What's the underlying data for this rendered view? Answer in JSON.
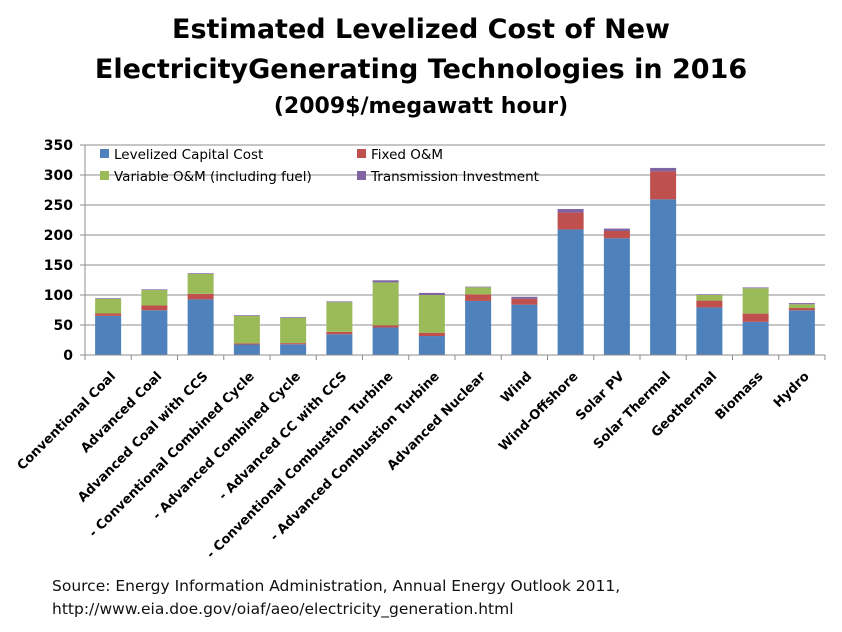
{
  "title": {
    "line1": "Estimated Levelized Cost of New",
    "line2": "ElectricityGenerating Technologies in 2016",
    "line3": "(2009$/megawatt hour)"
  },
  "source": {
    "line1": "Source: Energy Information Administration, Annual Energy Outlook 2011,",
    "line2": "http://www.eia.doe.gov/oiaf/aeo/electricity_generation.html"
  },
  "chart_data": {
    "type": "bar",
    "stacked": true,
    "grid": true,
    "legend_position": "top-left",
    "ylim": [
      0,
      350
    ],
    "yticks": [
      0,
      50,
      100,
      150,
      200,
      250,
      300,
      350
    ],
    "categories": [
      "Conventional Coal",
      "Advanced Coal",
      "Advanced Coal with CCS",
      "- Conventional Combined Cycle",
      "- Advanced Combined Cycle",
      "- Advanced CC with CCS",
      "- Conventional Combustion Turbine",
      "- Advanced Combustion Turbine",
      "Advanced Nuclear",
      "Wind",
      "Wind-Offshore",
      "Solar PV",
      "Solar Thermal",
      "Geothermal",
      "Biomass",
      "Hydro"
    ],
    "series": [
      {
        "name": "Levelized Capital  Cost",
        "color": "#4f81bd",
        "values": [
          65.3,
          74.6,
          92.7,
          17.5,
          17.9,
          34.6,
          45.8,
          31.6,
          90.1,
          83.9,
          209.3,
          194.6,
          259.4,
          79.3,
          55.3,
          74.5
        ]
      },
      {
        "name": "Fixed O&M",
        "color": "#c0504d",
        "values": [
          3.9,
          7.9,
          9.2,
          1.9,
          1.9,
          3.9,
          3.7,
          5.5,
          11.1,
          9.6,
          28.1,
          12.1,
          46.6,
          11.4,
          13.7,
          3.8
        ]
      },
      {
        "name": "Variable O&M (including fuel)",
        "color": "#9bbb59",
        "values": [
          24.3,
          25.7,
          33.1,
          45.6,
          42.1,
          49.6,
          71.5,
          62.9,
          11.7,
          0.0,
          0.0,
          0.0,
          0.0,
          9.5,
          42.3,
          6.3
        ]
      },
      {
        "name": "Transmission Investment",
        "color": "#8064a2",
        "values": [
          1.2,
          1.2,
          1.2,
          1.2,
          1.2,
          1.2,
          3.5,
          3.5,
          1.0,
          3.5,
          5.9,
          4.0,
          5.8,
          1.0,
          1.3,
          1.9
        ]
      }
    ]
  }
}
